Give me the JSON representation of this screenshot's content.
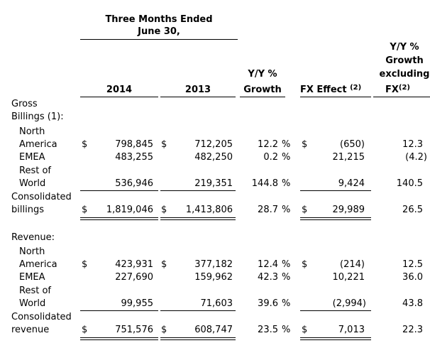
{
  "header": {
    "period_line1": "Three Months Ended",
    "period_line2": "June 30,",
    "col_2014": "2014",
    "col_2013": "2013",
    "yoy_line1": "Y/Y %",
    "yoy_line2": "Growth",
    "fx_label": "FX Effect",
    "fx_note": "(2)",
    "exfx_line1": "Y/Y %",
    "exfx_line2": "Growth",
    "exfx_line3": "excluding",
    "exfx_line4": "FX",
    "exfx_note": "(2)"
  },
  "gross": {
    "label_line1": "Gross",
    "label_line2": "Billings",
    "label_note": "(1)",
    "label_colon": ":",
    "na_line1": "North",
    "na_line2": "America",
    "na": {
      "cur1": "$",
      "v2014": "798,845",
      "cur2": "$",
      "v2013": "712,205",
      "yoy": "12.2",
      "pct": "%",
      "cur3": "$",
      "fx": "(650)",
      "exfx": "12.3"
    },
    "emea_label": "EMEA",
    "emea": {
      "v2014": "483,255",
      "v2013": "482,250",
      "yoy": "0.2",
      "pct": "%",
      "fx": "21,215",
      "exfx": "(4.2)"
    },
    "row_line1": "Rest of",
    "row_line2": "World",
    "row": {
      "v2014": "536,946",
      "v2013": "219,351",
      "yoy": "144.8",
      "pct": "%",
      "fx": "9,424",
      "exfx": "140.5"
    },
    "tot_line1": "Consolidated",
    "tot_line2": "billings",
    "tot": {
      "cur1": "$",
      "v2014": "1,819,046",
      "cur2": "$",
      "v2013": "1,413,806",
      "yoy": "28.7",
      "pct": "%",
      "cur3": "$",
      "fx": "29,989",
      "exfx": "26.5"
    }
  },
  "revenue": {
    "label": "Revenue:",
    "na_line1": "North",
    "na_line2": "America",
    "na": {
      "cur1": "$",
      "v2014": "423,931",
      "cur2": "$",
      "v2013": "377,182",
      "yoy": "12.4",
      "pct": "%",
      "cur3": "$",
      "fx": "(214)",
      "exfx": "12.5"
    },
    "emea_label": "EMEA",
    "emea": {
      "v2014": "227,690",
      "v2013": "159,962",
      "yoy": "42.3",
      "pct": "%",
      "fx": "10,221",
      "exfx": "36.0"
    },
    "row_line1": "Rest of",
    "row_line2": "World",
    "row": {
      "v2014": "99,955",
      "v2013": "71,603",
      "yoy": "39.6",
      "pct": "%",
      "fx": "(2,994)",
      "exfx": "43.8"
    },
    "tot_line1": "Consolidated",
    "tot_line2": "revenue",
    "tot": {
      "cur1": "$",
      "v2014": "751,576",
      "cur2": "$",
      "v2013": "608,747",
      "yoy": "23.5",
      "pct": "%",
      "cur3": "$",
      "fx": "7,013",
      "exfx": "22.3"
    }
  }
}
